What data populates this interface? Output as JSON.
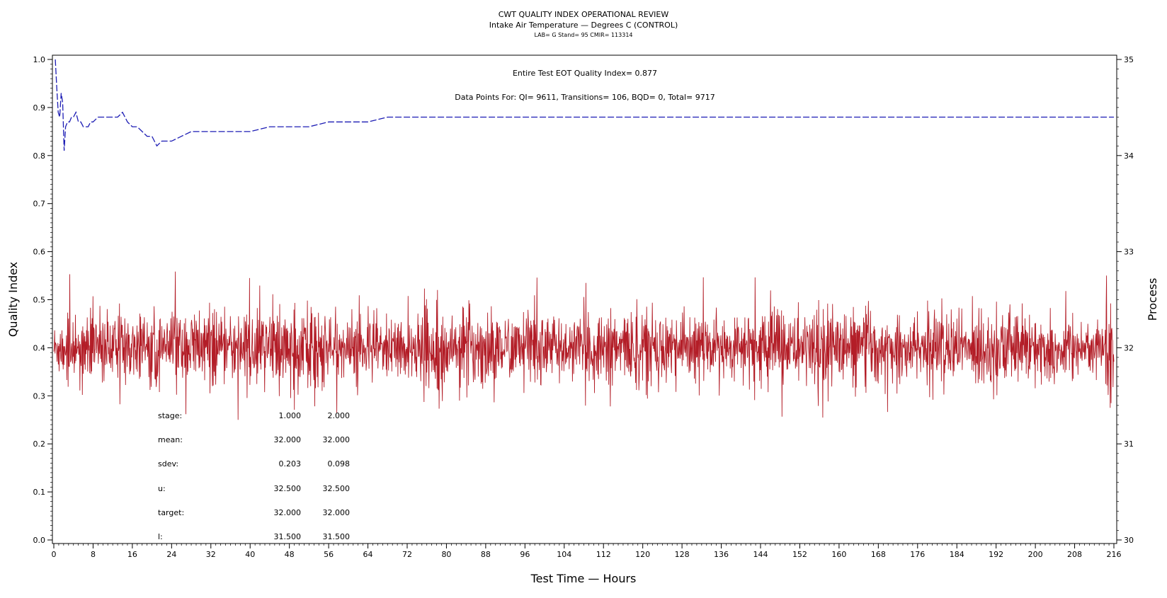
{
  "chart_data": {
    "type": "line",
    "title": "CWT QUALITY INDEX OPERATIONAL REVIEW",
    "subtitle": "Intake Air Temperature — Degrees C (CONTROL)",
    "subtitle2": "LAB= G Stand= 95 CMIR= 113314",
    "xlabel": "Test Time — Hours",
    "ylabel": "Quality Index",
    "y2label": "Process",
    "xlim": [
      0,
      216
    ],
    "ylim": [
      0.0,
      1.0
    ],
    "y2lim": [
      30,
      35
    ],
    "x_ticks": [
      "0",
      "8",
      "16",
      "24",
      "32",
      "40",
      "48",
      "56",
      "64",
      "72",
      "80",
      "88",
      "96",
      "104",
      "112",
      "120",
      "128",
      "136",
      "144",
      "152",
      "160",
      "168",
      "176",
      "184",
      "192",
      "200",
      "208",
      "216"
    ],
    "y_ticks": [
      "0.0",
      "0.1",
      "0.2",
      "0.3",
      "0.4",
      "0.5",
      "0.6",
      "0.7",
      "0.8",
      "0.9",
      "1.0"
    ],
    "y2_ticks": [
      "30",
      "31",
      "32",
      "33",
      "34",
      "35"
    ],
    "annotations": {
      "eot": "Entire Test EOT Quality Index=   0.877",
      "points": "Data Points For: QI=  9611, Transitions=   106, BQD=     0, Total=  9717"
    },
    "series": [
      {
        "axis": "left",
        "color": "#1c1cb4",
        "style": "dashed",
        "x": [
          0.3,
          0.6,
          0.9,
          1.2,
          1.5,
          1.8,
          2.1,
          2.4,
          2.8,
          3.2,
          3.6,
          4.0,
          4.5,
          5.0,
          5.5,
          6.0,
          6.5,
          7.0,
          7.5,
          8.0,
          9.0,
          10.0,
          11.0,
          12.0,
          13.0,
          14.0,
          15.0,
          16.0,
          17.0,
          18.0,
          19.0,
          20.0,
          21.0,
          22.0,
          23.0,
          24.0,
          26.0,
          28.0,
          30.0,
          32.0,
          35.0,
          38.0,
          40.0,
          44.0,
          48.0,
          52.0,
          56.0,
          60.0,
          64.0,
          68.0,
          72.0,
          76.0,
          80.0,
          84.0,
          88.0,
          92.0,
          96.0,
          104.0,
          112.0,
          120.0,
          128.0,
          136.0,
          144.0,
          148.0,
          152.0,
          160.0,
          168.0,
          176.0,
          184.0,
          192.0,
          200.0,
          208.0,
          216.0
        ],
        "values": [
          1.0,
          0.94,
          0.89,
          0.88,
          0.93,
          0.91,
          0.81,
          0.86,
          0.87,
          0.87,
          0.88,
          0.88,
          0.89,
          0.87,
          0.87,
          0.86,
          0.86,
          0.86,
          0.87,
          0.87,
          0.88,
          0.88,
          0.88,
          0.88,
          0.88,
          0.89,
          0.87,
          0.86,
          0.86,
          0.85,
          0.84,
          0.84,
          0.82,
          0.83,
          0.83,
          0.83,
          0.84,
          0.85,
          0.85,
          0.85,
          0.85,
          0.85,
          0.85,
          0.86,
          0.86,
          0.86,
          0.87,
          0.87,
          0.87,
          0.88,
          0.88,
          0.88,
          0.88,
          0.88,
          0.88,
          0.88,
          0.88,
          0.88,
          0.88,
          0.88,
          0.88,
          0.88,
          0.88,
          0.88,
          0.88,
          0.88,
          0.88,
          0.88,
          0.88,
          0.88,
          0.88,
          0.88,
          0.88
        ]
      },
      {
        "axis": "right",
        "color": "#b31d27",
        "style": "solid",
        "x": [
          0,
          216
        ],
        "values": [
          32.0,
          32.0
        ],
        "range_note": "high-frequency process trace centered on 32, mostly between 31.6 and 32.6"
      }
    ],
    "stats_table": {
      "labels": [
        "stage:",
        "mean:",
        "sdev:",
        "u:",
        "target:",
        "l:"
      ],
      "stage1": [
        "1.000",
        "32.000",
        "0.203",
        "32.500",
        "32.000",
        "31.500"
      ],
      "stage2": [
        "2.000",
        "32.000",
        "0.098",
        "32.500",
        "32.000",
        "31.500"
      ]
    }
  }
}
